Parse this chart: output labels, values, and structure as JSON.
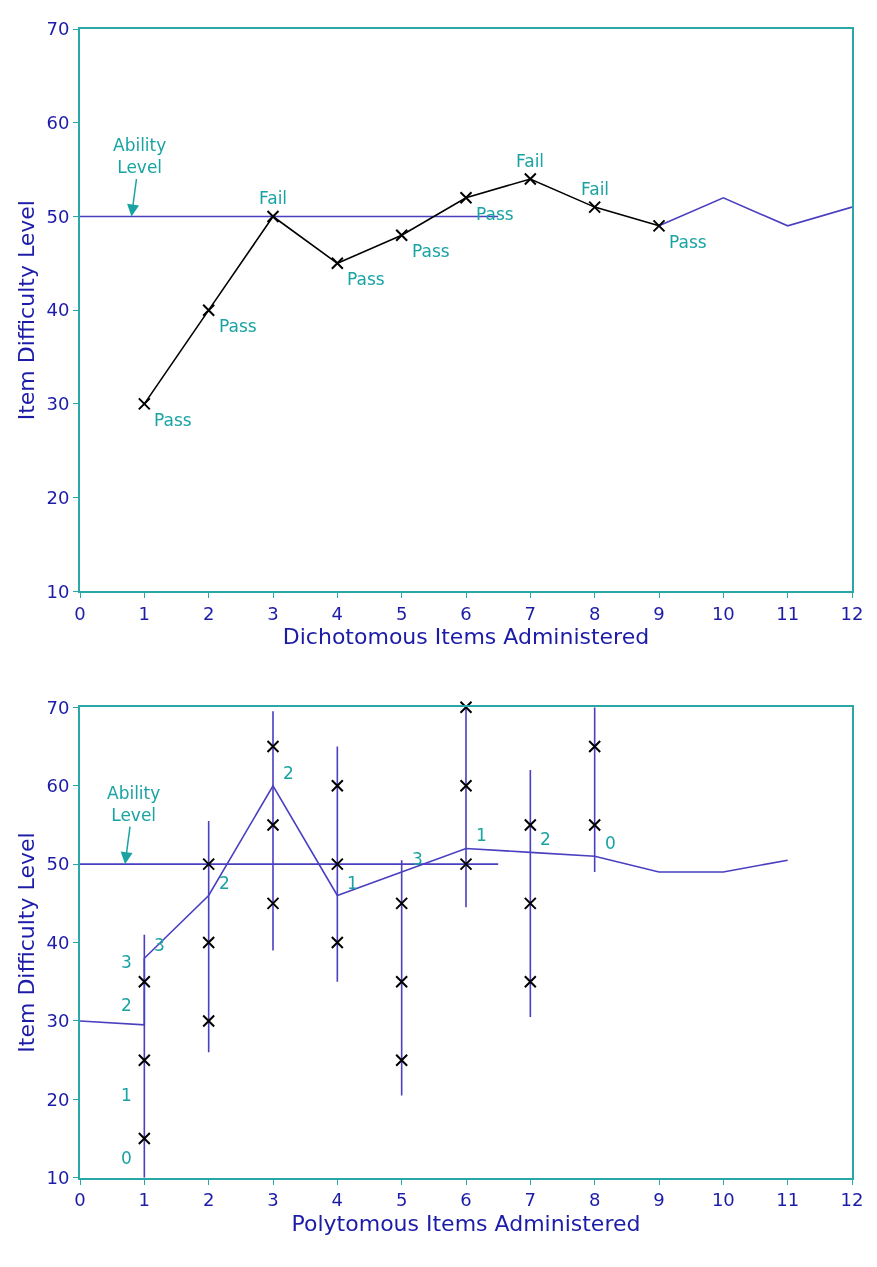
{
  "chart_data": [
    {
      "type": "line",
      "xlabel": "Dichotomous Items Administered",
      "ylabel": "Item Difficulty Level",
      "xlim": [
        0,
        12
      ],
      "ylim": [
        10,
        70
      ],
      "xticks": [
        0,
        1,
        2,
        3,
        4,
        5,
        6,
        7,
        8,
        9,
        10,
        11,
        12
      ],
      "yticks": [
        10,
        20,
        30,
        40,
        50,
        60,
        70
      ],
      "series": [
        {
          "color": "#4a3fc0",
          "x": [
            0,
            6.5
          ],
          "values": [
            50,
            50
          ],
          "marker": "none"
        },
        {
          "color": "#4a3fc0",
          "x": [
            9,
            10,
            11,
            12
          ],
          "values": [
            49,
            52,
            49,
            51
          ],
          "marker": "none"
        },
        {
          "color": "#000000",
          "x": [
            1,
            2,
            3,
            4,
            5,
            6,
            7,
            8,
            9
          ],
          "values": [
            30,
            40,
            50,
            45,
            48,
            52,
            54,
            51,
            49
          ],
          "marker": "cross"
        }
      ],
      "annotations": [
        {
          "text": "Ability\nLevel",
          "x": 0.8,
          "y": 50
        },
        {
          "text": "Pass",
          "x": 1,
          "y": 30
        },
        {
          "text": "Pass",
          "x": 2,
          "y": 40
        },
        {
          "text": "Fail",
          "x": 3,
          "y": 50
        },
        {
          "text": "Pass",
          "x": 4,
          "y": 45
        },
        {
          "text": "Pass",
          "x": 5,
          "y": 48
        },
        {
          "text": "Pass",
          "x": 6,
          "y": 52
        },
        {
          "text": "Fail",
          "x": 7,
          "y": 54
        },
        {
          "text": "Fail",
          "x": 8,
          "y": 51
        },
        {
          "text": "Pass",
          "x": 9,
          "y": 49
        }
      ]
    },
    {
      "type": "line",
      "xlabel": "Polytomous Items Administered",
      "ylabel": "Item Difficulty Level",
      "xlim": [
        0,
        12
      ],
      "ylim": [
        10,
        70
      ],
      "xticks": [
        0,
        1,
        2,
        3,
        4,
        5,
        6,
        7,
        8,
        9,
        10,
        11,
        12
      ],
      "yticks": [
        10,
        20,
        30,
        40,
        50,
        60,
        70
      ],
      "series": [
        {
          "color": "#4a3fc0",
          "x": [
            0,
            6.5
          ],
          "values": [
            50,
            50
          ],
          "marker": "none"
        },
        {
          "color": "#4a3fc0",
          "x": [
            1,
            1
          ],
          "values": [
            10,
            41
          ],
          "marker": "none"
        },
        {
          "color": "#4a3fc0",
          "x": [
            2,
            2
          ],
          "values": [
            26,
            55.5
          ],
          "marker": "none"
        },
        {
          "color": "#4a3fc0",
          "x": [
            3,
            3
          ],
          "values": [
            39,
            69.5
          ],
          "marker": "none"
        },
        {
          "color": "#4a3fc0",
          "x": [
            4,
            4
          ],
          "values": [
            35,
            65
          ],
          "marker": "none"
        },
        {
          "color": "#4a3fc0",
          "x": [
            5,
            5
          ],
          "values": [
            20.5,
            50.5
          ],
          "marker": "none"
        },
        {
          "color": "#4a3fc0",
          "x": [
            6,
            6
          ],
          "values": [
            44.5,
            70
          ],
          "marker": "none"
        },
        {
          "color": "#4a3fc0",
          "x": [
            7,
            7
          ],
          "values": [
            30.5,
            62
          ],
          "marker": "none"
        },
        {
          "color": "#4a3fc0",
          "x": [
            8,
            8
          ],
          "values": [
            49,
            70
          ],
          "marker": "none"
        },
        {
          "color": "#4a3fc0",
          "x": [
            0,
            1,
            1,
            2,
            3,
            4,
            5,
            6,
            7,
            8,
            9,
            10,
            11
          ],
          "values": [
            30,
            29.5,
            38,
            46,
            60,
            46,
            49,
            52,
            51.5,
            51,
            49,
            49,
            50.5
          ],
          "marker": "none"
        },
        {
          "type": "scatter",
          "color": "#000000",
          "x": [
            1,
            1,
            1,
            2,
            2,
            2,
            3,
            3,
            3,
            4,
            4,
            4,
            5,
            5,
            5,
            6,
            6,
            6,
            7,
            7,
            7,
            8,
            8
          ],
          "values": [
            15,
            25,
            35,
            30,
            40,
            50,
            45,
            55,
            65,
            40,
            50,
            60,
            25,
            35,
            45,
            50,
            60,
            70,
            35,
            45,
            55,
            55,
            65
          ],
          "marker": "cross"
        }
      ],
      "annotations": [
        {
          "text": "Ability\nLevel",
          "x": 0.7,
          "y": 50
        },
        {
          "text": "0",
          "x": 1,
          "y": 12.5
        },
        {
          "text": "1",
          "x": 1,
          "y": 20.5
        },
        {
          "text": "2",
          "x": 1,
          "y": 32
        },
        {
          "text": "3",
          "x": 1,
          "y": 37.5
        },
        {
          "text": "3",
          "x": 1,
          "y": 38
        },
        {
          "text": "2",
          "x": 2,
          "y": 46
        },
        {
          "text": "2",
          "x": 3,
          "y": 60
        },
        {
          "text": "1",
          "x": 4,
          "y": 46
        },
        {
          "text": "3",
          "x": 5,
          "y": 49
        },
        {
          "text": "1",
          "x": 6,
          "y": 52
        },
        {
          "text": "2",
          "x": 7,
          "y": 51.5
        },
        {
          "text": "0",
          "x": 8,
          "y": 51
        }
      ]
    }
  ]
}
